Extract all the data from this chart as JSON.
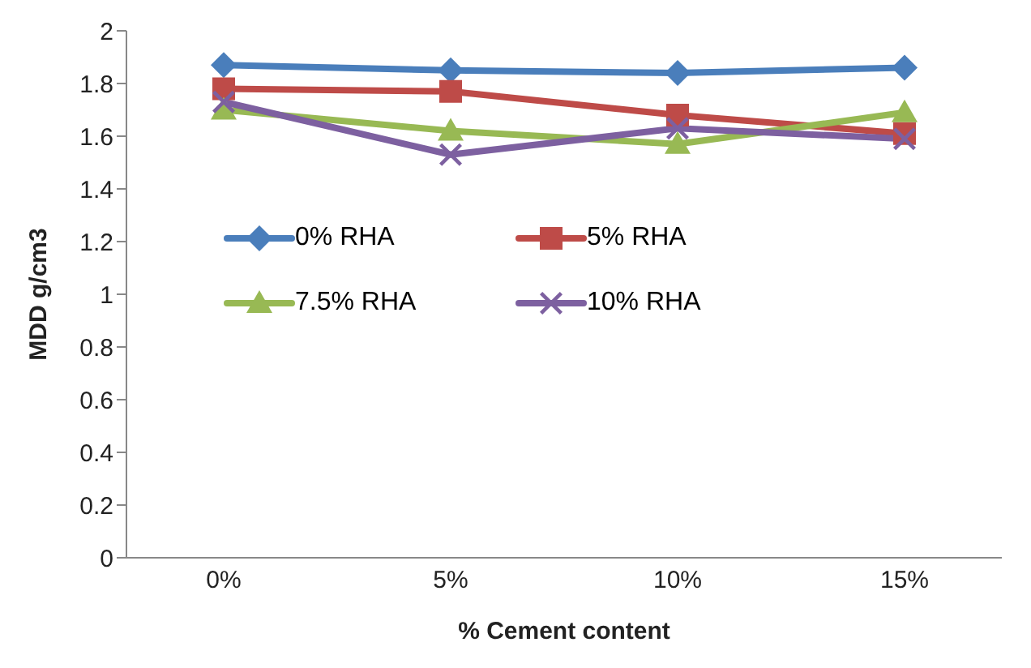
{
  "chart_data": {
    "type": "line",
    "xlabel": "% Cement content",
    "ylabel": "MDD g/cm3",
    "categories": [
      "0%",
      "5%",
      "10%",
      "15%"
    ],
    "series": [
      {
        "name": "0% RHA",
        "color": "#4a7ebb",
        "marker": "diamond",
        "values": [
          1.87,
          1.85,
          1.84,
          1.86
        ]
      },
      {
        "name": "5% RHA",
        "color": "#be4b48",
        "marker": "square",
        "values": [
          1.78,
          1.77,
          1.68,
          1.61
        ]
      },
      {
        "name": "7.5% RHA",
        "color": "#98b954",
        "marker": "triangle",
        "values": [
          1.7,
          1.62,
          1.57,
          1.69
        ]
      },
      {
        "name": "10% RHA",
        "color": "#7d60a0",
        "marker": "cross",
        "values": [
          1.73,
          1.53,
          1.63,
          1.59
        ]
      }
    ],
    "ylim": [
      0,
      2
    ],
    "yticks": [
      0,
      0.2,
      0.4,
      0.6,
      0.8,
      1,
      1.2,
      1.4,
      1.6,
      1.8,
      2
    ],
    "grid": false,
    "legend": "center"
  }
}
